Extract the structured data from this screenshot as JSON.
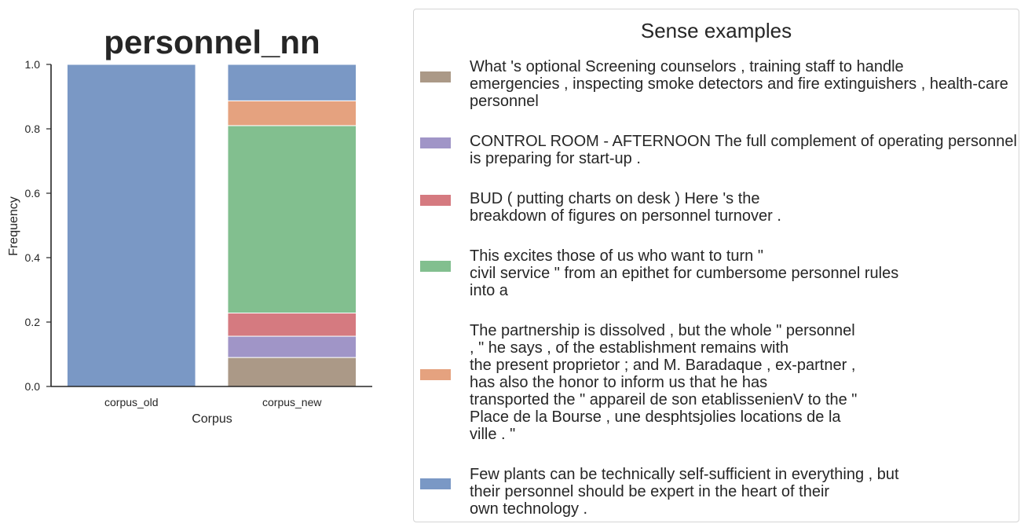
{
  "chart_data": {
    "type": "bar",
    "stacked": true,
    "title": "personnel_nn",
    "xlabel": "Corpus",
    "ylabel": "Frequency",
    "categories": [
      "corpus_old",
      "corpus_new"
    ],
    "ylim": [
      0,
      1.0
    ],
    "yticks": [
      "0.0",
      "0.2",
      "0.4",
      "0.6",
      "0.8",
      "1.0"
    ],
    "series": [
      {
        "values": [
          0.0,
          0.09
        ],
        "color": "#ab9987"
      },
      {
        "values": [
          0.0,
          0.066
        ],
        "color": "#a095c7"
      },
      {
        "values": [
          0.0,
          0.072
        ],
        "color": "#d57a80"
      },
      {
        "values": [
          0.0,
          0.582
        ],
        "color": "#82bf8f"
      },
      {
        "values": [
          0.0,
          0.077
        ],
        "color": "#e5a27f"
      },
      {
        "values": [
          1.0,
          0.113
        ],
        "color": "#7a98c5"
      }
    ]
  },
  "legend": {
    "title": "Sense examples",
    "items": [
      {
        "color": "#ab9987",
        "text": "What 's optional Screening counselors , training staff to handle\nemergencies , inspecting smoke detectors and fire extinguishers , health-care\npersonnel"
      },
      {
        "color": "#a095c7",
        "text": "CONTROL ROOM - AFTERNOON The full complement of operating personnel\nis preparing for start-up ."
      },
      {
        "color": "#d57a80",
        "text": "BUD ( putting charts on desk ) Here 's the\nbreakdown of figures on personnel turnover ."
      },
      {
        "color": "#82bf8f",
        "text": "This excites those of us who want to turn \"\ncivil service \" from an epithet for cumbersome personnel rules\ninto a"
      },
      {
        "color": "#e5a27f",
        "text": "The partnership is dissolved , but the whole \" personnel\n, \" he says , of the establishment remains with\nthe present proprietor ; and M. Baradaque , ex-partner ,\nhas also the honor to inform us that he has\ntransported the \" appareil de son etablissenienV to the \"\nPlace de la Bourse , une desphtsjolies locations de la\nville . \""
      },
      {
        "color": "#7a98c5",
        "text": "Few plants can be technically self-sufficient in everything , but\ntheir personnel should be expert in the heart of their\nown technology ."
      }
    ]
  }
}
